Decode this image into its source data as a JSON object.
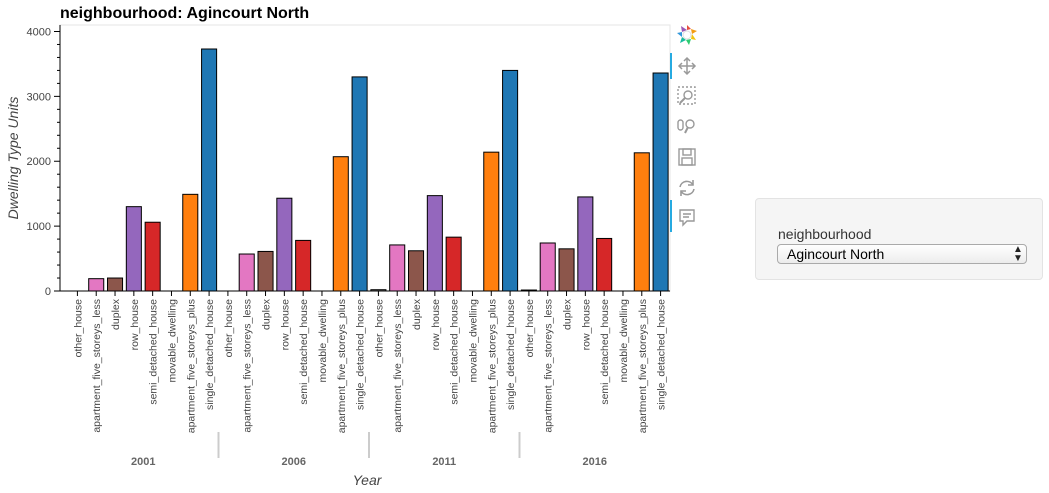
{
  "chart_data": {
    "type": "bar",
    "title": "neighbourhood: Agincourt North",
    "xlabel": "Year",
    "ylabel": "Dwelling Type Units",
    "ylim": [
      0,
      4100
    ],
    "yticks": [
      0,
      1000,
      2000,
      3000,
      4000
    ],
    "groups": [
      "2001",
      "2006",
      "2011",
      "2016"
    ],
    "categories": [
      "other_house",
      "apartment_five_storeys_less",
      "duplex",
      "row_house",
      "semi_detached_house",
      "movable_dwelling",
      "apartment_five_storeys_plus",
      "single_detached_house"
    ],
    "category_colors": [
      "#7f7f7f",
      "#e377c2",
      "#8c564b",
      "#9467bd",
      "#d62728",
      "#bcbd22",
      "#ff7f0e",
      "#1f77b4"
    ],
    "values": {
      "2001": [
        0,
        190,
        200,
        1300,
        1060,
        0,
        1490,
        3730
      ],
      "2006": [
        0,
        570,
        610,
        1430,
        780,
        0,
        2070,
        3300
      ],
      "2011": [
        20,
        710,
        620,
        1470,
        830,
        0,
        2140,
        3400
      ],
      "2016": [
        15,
        740,
        650,
        1450,
        810,
        0,
        2130,
        3360
      ]
    },
    "grid": false,
    "legend": "none"
  },
  "toolbar": {
    "tools": [
      {
        "name": "bokeh-logo-icon"
      },
      {
        "name": "pan-tool-icon"
      },
      {
        "name": "box-zoom-tool-icon"
      },
      {
        "name": "wheel-zoom-tool-icon"
      },
      {
        "name": "save-tool-icon"
      },
      {
        "name": "reset-tool-icon"
      },
      {
        "name": "hover-tool-icon"
      }
    ]
  },
  "widget": {
    "label": "neighbourhood",
    "selected": "Agincourt North"
  }
}
